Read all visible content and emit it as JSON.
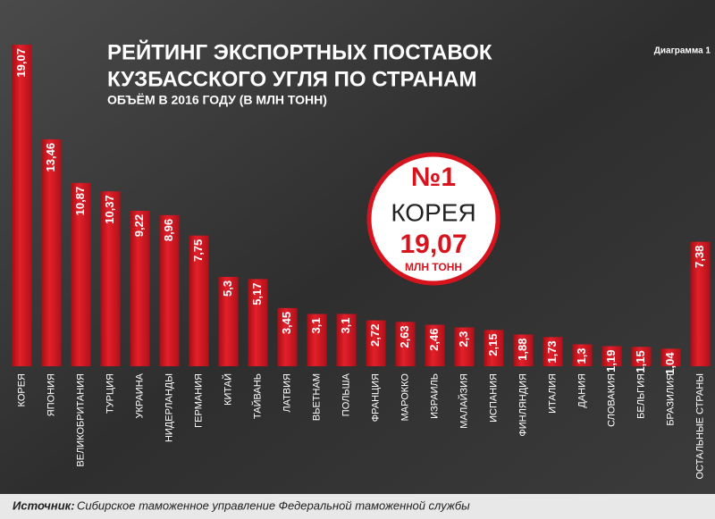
{
  "chart_data": {
    "type": "bar",
    "title": [
      "РЕЙТИНГ ЭКСПОРТНЫХ ПОСТАВОК",
      "КУЗБАССКОГО УГЛЯ ПО СТРАНАМ"
    ],
    "subtitle": "ОБЪЁМ В 2016 ГОДУ (В МЛН ТОНН)",
    "figure_label": "Диаграмма 1",
    "categories": [
      "КОРЕЯ",
      "ЯПОНИЯ",
      "ВЕЛИКОБРИТАНИЯ",
      "ТУРЦИЯ",
      "УКРАИНА",
      "НИДЕРЛАНДЫ",
      "ГЕРМАНИЯ",
      "КИТАЙ",
      "ТАЙВАНЬ",
      "ЛАТВИЯ",
      "ВЬЕТНАМ",
      "ПОЛЬША",
      "ФРАНЦИЯ",
      "МАРОККО",
      "ИЗРАИЛЬ",
      "МАЛАЙЗИЯ",
      "ИСПАНИЯ",
      "ФИНЛЯНДИЯ",
      "ИТАЛИЯ",
      "ДАНИЯ",
      "СЛОВАКИЯ",
      "БЕЛЬГИЯ",
      "БРАЗИЛИЯ",
      "ОСТАЛЬНЫЕ СТРАНЫ"
    ],
    "values": [
      19.07,
      13.46,
      10.87,
      10.37,
      9.22,
      8.96,
      7.75,
      5.3,
      5.17,
      3.45,
      3.1,
      3.1,
      2.72,
      2.63,
      2.46,
      2.3,
      2.15,
      1.88,
      1.73,
      1.3,
      1.19,
      1.15,
      1.04,
      7.38
    ],
    "value_labels": [
      "19,07",
      "13,46",
      "10,87",
      "10,37",
      "9,22",
      "8,96",
      "7,75",
      "5,3",
      "5,17",
      "3,45",
      "3,1",
      "3,1",
      "2,72",
      "2,63",
      "2,46",
      "2,3",
      "2,15",
      "1,88",
      "1,73",
      "1,3",
      "1,19",
      "1,15",
      "1,04",
      "7,38"
    ],
    "color": "#d7141e",
    "badge": {
      "rank": "№1",
      "country": "КОРЕЯ",
      "value": "19,07",
      "unit": "МЛН ТОНН"
    },
    "source": {
      "label": "Источник:",
      "text": "Сибирское таможенное управление Федеральной таможенной службы"
    }
  }
}
